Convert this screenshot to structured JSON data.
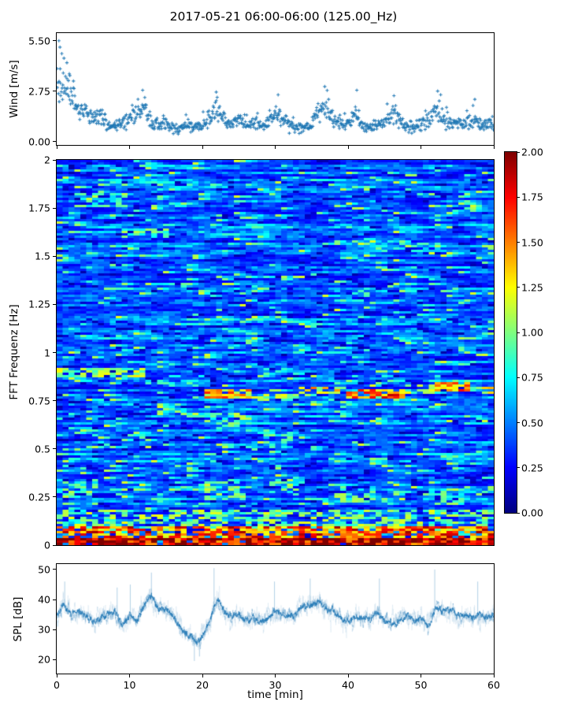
{
  "title": "2017-05-21 06:00-06:00 (125.00_Hz)",
  "xlabel": "time [min]",
  "colors": {
    "series_blue": "#1f77b4",
    "axis": "#000000",
    "background": "#ffffff"
  },
  "x_axis": {
    "min": 0,
    "max": 60,
    "ticks": [
      {
        "value": 0,
        "label": "0"
      },
      {
        "value": 10,
        "label": "10"
      },
      {
        "value": 20,
        "label": "20"
      },
      {
        "value": 30,
        "label": "30"
      },
      {
        "value": 40,
        "label": "40"
      },
      {
        "value": 50,
        "label": "50"
      },
      {
        "value": 60,
        "label": "60"
      }
    ]
  },
  "chart_data": [
    {
      "type": "scatter",
      "name": "wind-speed",
      "ylabel": "Wind [m/s]",
      "marker": "+",
      "color": "#1f77b4",
      "ylim": [
        -0.19,
        5.92
      ],
      "yticks": [
        {
          "value": 5.5,
          "label": "5.50"
        },
        {
          "value": 2.75,
          "label": "2.75"
        },
        {
          "value": 0,
          "label": "0.00"
        }
      ],
      "x_range": [
        0,
        60
      ],
      "n_points": 880,
      "seed": 20170521,
      "envelope_minutes_step": 1,
      "envelope_mean": [
        3.1,
        2.9,
        2.5,
        1.9,
        1.5,
        1.2,
        1.45,
        1.0,
        0.85,
        1.05,
        1.25,
        1.55,
        1.75,
        1.0,
        0.85,
        1.1,
        0.7,
        0.65,
        1.0,
        0.7,
        0.85,
        1.3,
        1.8,
        1.1,
        0.9,
        1.15,
        0.9,
        1.05,
        0.8,
        1.0,
        1.55,
        1.25,
        0.9,
        0.8,
        0.7,
        1.0,
        1.6,
        1.8,
        1.15,
        0.9,
        1.0,
        1.45,
        0.8,
        0.7,
        0.9,
        1.05,
        1.5,
        1.25,
        0.8,
        0.7,
        1.0,
        1.15,
        1.65,
        1.35,
        1.0,
        1.1,
        0.9,
        1.25,
        1.05,
        0.9,
        1.0
      ],
      "envelope_spread": [
        1.5,
        1.4,
        1.1,
        0.9,
        0.7,
        0.55,
        0.6,
        0.5,
        0.4,
        0.5,
        0.55,
        0.7,
        0.75,
        0.5,
        0.4,
        0.5,
        0.35,
        0.3,
        0.45,
        0.35,
        0.4,
        0.6,
        0.75,
        0.5,
        0.45,
        0.5,
        0.45,
        0.5,
        0.4,
        0.45,
        0.65,
        0.55,
        0.45,
        0.4,
        0.35,
        0.5,
        0.7,
        0.75,
        0.5,
        0.45,
        0.5,
        0.6,
        0.4,
        0.35,
        0.45,
        0.5,
        0.65,
        0.55,
        0.4,
        0.35,
        0.5,
        0.55,
        0.7,
        0.6,
        0.5,
        0.5,
        0.45,
        0.55,
        0.5,
        0.45,
        0.5
      ],
      "notable_points": [
        [
          0.3,
          5.5
        ],
        [
          0.45,
          5.15
        ],
        [
          0.7,
          4.8
        ],
        [
          1.0,
          4.55
        ],
        [
          1.4,
          4.3
        ],
        [
          1.8,
          3.6
        ],
        [
          2.3,
          3.3
        ],
        [
          11.8,
          2.8
        ],
        [
          21.9,
          2.7
        ],
        [
          30.4,
          2.55
        ],
        [
          36.8,
          3.0
        ],
        [
          41.2,
          2.8
        ],
        [
          46.3,
          2.5
        ],
        [
          52.3,
          2.75
        ],
        [
          57.4,
          2.3
        ]
      ]
    },
    {
      "type": "heatmap",
      "name": "fft-spectrogram",
      "ylabel": "FFT Frequenz [Hz]",
      "colormap": "jet",
      "ylim": [
        0,
        2
      ],
      "clim": [
        0,
        2
      ],
      "yticks": [
        {
          "value": 2,
          "label": "2"
        },
        {
          "value": 1.75,
          "label": "1.75"
        },
        {
          "value": 1.5,
          "label": "1.5"
        },
        {
          "value": 1.25,
          "label": "1.25"
        },
        {
          "value": 1,
          "label": "1"
        },
        {
          "value": 0.75,
          "label": "0.75"
        },
        {
          "value": 0.5,
          "label": "0.5"
        },
        {
          "value": 0.25,
          "label": "0.25"
        },
        {
          "value": 0,
          "label": "0"
        }
      ],
      "colorbar_ticks": [
        {
          "value": 2,
          "label": "2.00"
        },
        {
          "value": 1.75,
          "label": "1.75"
        },
        {
          "value": 1.5,
          "label": "1.50"
        },
        {
          "value": 1.25,
          "label": "1.25"
        },
        {
          "value": 1,
          "label": "1.00"
        },
        {
          "value": 0.75,
          "label": "0.75"
        },
        {
          "value": 0.5,
          "label": "0.50"
        },
        {
          "value": 0.25,
          "label": "0.25"
        },
        {
          "value": 0,
          "label": "0.00"
        }
      ],
      "grid": {
        "cols": 74,
        "rows": 163
      },
      "seed": 7,
      "base": {
        "level_min": 0.2,
        "level_spread": 0.55,
        "streak_prob": 0.06,
        "dark_prob": 0.07
      },
      "bands": [
        {
          "f": 0.9,
          "df": 0.025,
          "t0": 0,
          "t1": 12,
          "v": 1.05,
          "p": 0.75
        },
        {
          "f": 0.86,
          "df": 0.02,
          "t0": 12,
          "t1": 20,
          "v": 0.8,
          "p": 0.45
        },
        {
          "f": 0.78,
          "df": 0.025,
          "t0": 20,
          "t1": 27,
          "v": 1.35,
          "p": 0.8
        },
        {
          "f": 0.765,
          "df": 0.02,
          "t0": 27,
          "t1": 33,
          "v": 1.0,
          "p": 0.65
        },
        {
          "f": 0.8,
          "df": 0.02,
          "t0": 33,
          "t1": 40,
          "v": 1.25,
          "p": 0.75
        },
        {
          "f": 0.785,
          "df": 0.025,
          "t0": 40,
          "t1": 48,
          "v": 1.55,
          "p": 0.85
        },
        {
          "f": 0.81,
          "df": 0.02,
          "t0": 48,
          "t1": 52,
          "v": 1.05,
          "p": 0.65
        },
        {
          "f": 0.825,
          "df": 0.025,
          "t0": 52,
          "t1": 57,
          "v": 1.45,
          "p": 0.8
        },
        {
          "f": 0.8,
          "df": 0.02,
          "t0": 57,
          "t1": 60,
          "v": 1.15,
          "p": 0.7
        },
        {
          "f": 0.3,
          "df": 0.045,
          "t0": 0,
          "t1": 6,
          "v": 0.9,
          "p": 0.45
        },
        {
          "f": 0.28,
          "df": 0.05,
          "t0": 20,
          "t1": 26,
          "v": 0.95,
          "p": 0.5
        },
        {
          "f": 0.3,
          "df": 0.04,
          "t0": 29,
          "t1": 33,
          "v": 0.85,
          "p": 0.4
        },
        {
          "f": 0.27,
          "df": 0.05,
          "t0": 38,
          "t1": 44,
          "v": 0.9,
          "p": 0.45
        },
        {
          "f": 0.25,
          "df": 0.04,
          "t0": 50,
          "t1": 56,
          "v": 0.85,
          "p": 0.4
        },
        {
          "f": 0.65,
          "df": 0.04,
          "t0": 20,
          "t1": 27,
          "v": 0.95,
          "p": 0.45
        },
        {
          "f": 0.55,
          "df": 0.05,
          "t0": 27,
          "t1": 33,
          "v": 0.8,
          "p": 0.35
        },
        {
          "f": 1.62,
          "df": 0.03,
          "t0": 9,
          "t1": 15,
          "v": 0.9,
          "p": 0.45
        },
        {
          "f": 1.79,
          "df": 0.04,
          "t0": 2,
          "t1": 10,
          "v": 0.9,
          "p": 0.45
        },
        {
          "f": 1.55,
          "df": 0.03,
          "t0": 44,
          "t1": 53,
          "v": 0.85,
          "p": 0.4
        },
        {
          "f": 1.3,
          "df": 0.04,
          "t0": 38,
          "t1": 44,
          "v": 0.75,
          "p": 0.35
        },
        {
          "f": 0.13,
          "df": 0.06,
          "t0": 0,
          "t1": 60,
          "v": 1.0,
          "p": 0.45
        },
        {
          "f": 0.065,
          "df": 0.035,
          "t0": 0,
          "t1": 60,
          "v": 1.55,
          "p": 0.7
        },
        {
          "f": 0.02,
          "df": 0.02,
          "t0": 0,
          "t1": 60,
          "v": 1.9,
          "p": 0.95
        }
      ]
    },
    {
      "type": "line",
      "name": "spl",
      "ylabel": "SPL [dB]",
      "color": "#1f77b4",
      "ylim": [
        15.3,
        51.84
      ],
      "yticks": [
        {
          "value": 50,
          "label": "50"
        },
        {
          "value": 40,
          "label": "40"
        },
        {
          "value": 30,
          "label": "30"
        },
        {
          "value": 20,
          "label": "20"
        }
      ],
      "seed": 99,
      "n_points": 2600,
      "keypoints_minutes_step": 1,
      "keypoints_db": [
        35,
        38,
        35,
        36,
        34,
        33,
        34,
        35,
        36,
        31,
        35,
        33,
        38,
        41,
        37,
        37,
        34,
        31,
        28,
        26,
        27,
        33,
        40,
        36,
        34,
        35,
        33,
        34,
        33,
        34,
        36,
        35,
        34,
        36,
        38,
        38,
        39,
        37,
        36,
        34,
        33,
        34,
        33,
        34,
        36,
        33,
        32,
        33,
        34,
        33,
        34,
        31,
        37,
        36,
        37,
        34,
        35,
        34,
        35,
        34,
        35
      ],
      "noise_layers": [
        {
          "amp": 5.5,
          "alpha": 0.12,
          "width": 0.7
        },
        {
          "amp": 3.2,
          "alpha": 0.28,
          "width": 0.7
        },
        {
          "amp": 1.7,
          "alpha": 0.78,
          "width": 0.9
        }
      ],
      "spikes": [
        [
          1.1,
          46
        ],
        [
          8.3,
          44
        ],
        [
          10.1,
          45
        ],
        [
          13.0,
          49
        ],
        [
          21.6,
          50.5
        ],
        [
          29.9,
          46
        ],
        [
          34.8,
          47
        ],
        [
          44.3,
          47
        ],
        [
          51.9,
          50
        ],
        [
          57.8,
          46
        ],
        [
          18.9,
          19.5
        ],
        [
          19.6,
          21
        ]
      ]
    }
  ]
}
